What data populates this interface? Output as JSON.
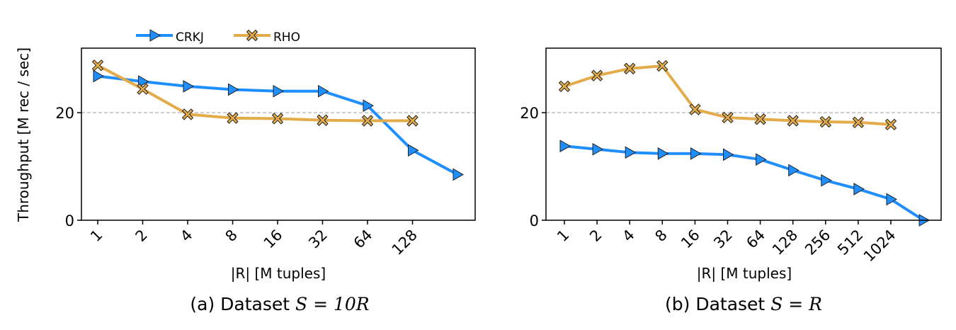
{
  "figure": {
    "ylabel": "Throughput [M rec / sec]",
    "legend": [
      {
        "name": "CRKJ",
        "color": "#1f8fff",
        "marker": "triangle-right"
      },
      {
        "name": "RHO",
        "color": "#e3ab4a",
        "marker": "x-filled"
      }
    ],
    "legend_position": "top-left, above plot (a)"
  },
  "chart_data": [
    {
      "type": "line",
      "caption_prefix": "(a) Dataset ",
      "caption_math": "S = 10R",
      "xlabel": "|R| [M tuples]",
      "x_tick_labels": [
        "1",
        "2",
        "4",
        "8",
        "16",
        "32",
        "64",
        "128"
      ],
      "x_count": 9,
      "y_ticks": [
        0,
        20
      ],
      "ylim": [
        0,
        32
      ],
      "reference_line_y": 20,
      "series": [
        {
          "name": "CRKJ",
          "values": [
            26.8,
            25.8,
            24.9,
            24.3,
            24.0,
            24.0,
            21.3,
            13.0,
            8.5
          ]
        },
        {
          "name": "RHO",
          "values": [
            28.8,
            24.4,
            19.7,
            19.0,
            18.9,
            18.6,
            18.5,
            18.5
          ]
        }
      ]
    },
    {
      "type": "line",
      "caption_prefix": "(b) Dataset ",
      "caption_math": "S = R",
      "xlabel": "|R| [M tuples]",
      "x_tick_labels": [
        "1",
        "2",
        "4",
        "8",
        "16",
        "32",
        "64",
        "128",
        "256",
        "512",
        "1024"
      ],
      "x_count": 12,
      "y_ticks": [
        0,
        20
      ],
      "ylim": [
        0,
        32
      ],
      "reference_line_y": 20,
      "series": [
        {
          "name": "CRKJ",
          "values": [
            13.8,
            13.2,
            12.6,
            12.4,
            12.4,
            12.2,
            11.3,
            9.3,
            7.4,
            5.8,
            3.9,
            0.0
          ]
        },
        {
          "name": "RHO",
          "values": [
            24.9,
            26.9,
            28.2,
            28.7,
            20.6,
            19.1,
            18.8,
            18.5,
            18.3,
            18.2,
            17.8
          ]
        }
      ]
    }
  ]
}
